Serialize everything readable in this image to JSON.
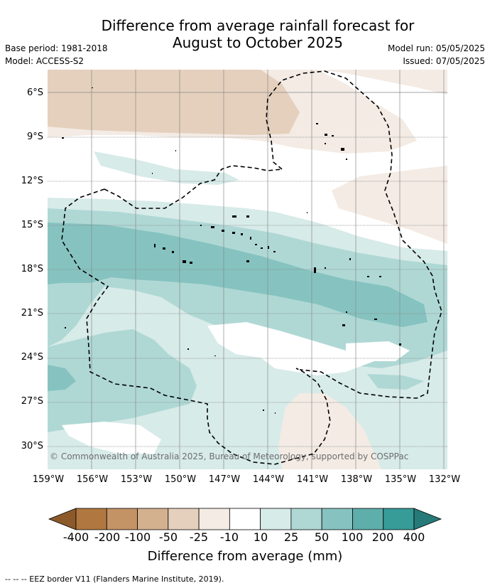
{
  "title_line1": "Difference from average rainfall forecast for",
  "title_line2": "August to October 2025",
  "base_period": "Base period: 1981-2018",
  "model": "Model: ACCESS-S2",
  "model_run": "Model run: 05/05/2025",
  "issued": "Issued: 07/05/2025",
  "copyright": "© Commonwealth of Australia 2025, Bureau of Meteorology, supported by COSPPac",
  "lat_labels": [
    "6°S",
    "9°S",
    "12°S",
    "15°S",
    "18°S",
    "21°S",
    "24°S",
    "27°S",
    "30°S"
  ],
  "lon_labels": [
    "159°W",
    "156°W",
    "153°W",
    "150°W",
    "147°W",
    "144°W",
    "141°W",
    "138°W",
    "135°W",
    "132°W"
  ],
  "colorbar": {
    "title": "Difference from average (mm)",
    "tick_labels": [
      "-400",
      "-200",
      "-100",
      "-50",
      "-25",
      "-10",
      "10",
      "25",
      "50",
      "100",
      "200",
      "400"
    ],
    "colors": [
      "#8c5a2a",
      "#b07840",
      "#c39366",
      "#d3b08e",
      "#e5d0bd",
      "#f3ebe4",
      "#ffffff",
      "#d7ebe9",
      "#afd8d5",
      "#86c3c0",
      "#5eaeab",
      "#379b98",
      "#267a77"
    ]
  },
  "footnote": "-- -- -- EEZ border V11 (Flanders Marine Institute, 2019)."
}
